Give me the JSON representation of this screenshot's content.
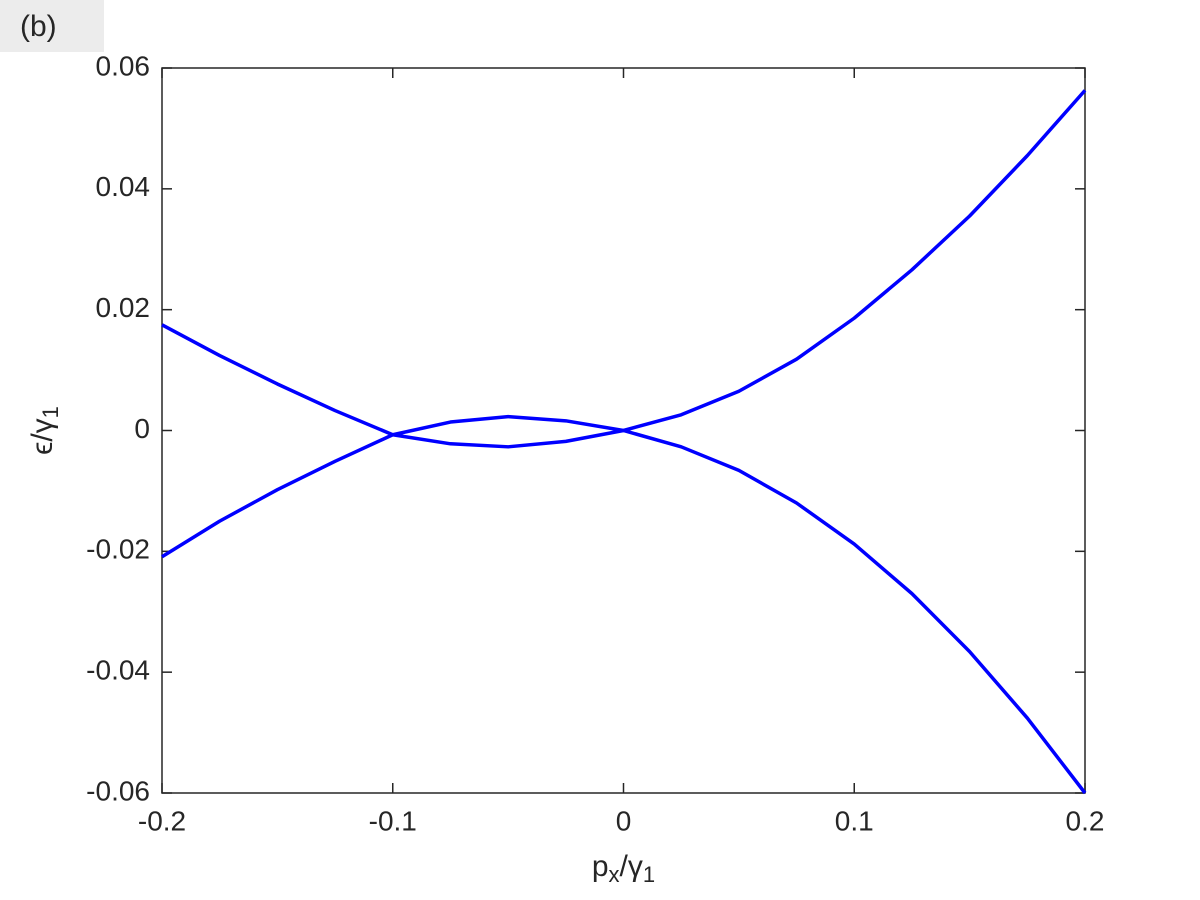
{
  "chart_data": {
    "type": "line",
    "panel_label": "(b)",
    "xlabel_parts": [
      "p",
      "x",
      "/γ",
      "1"
    ],
    "ylabel_parts": [
      "ϵ/γ",
      "1"
    ],
    "x": [
      -0.2,
      -0.175,
      -0.15,
      -0.125,
      -0.1,
      -0.075,
      -0.05,
      -0.025,
      0,
      0.025,
      0.05,
      0.075,
      0.1,
      0.125,
      0.15,
      0.175,
      0.2
    ],
    "series": [
      {
        "color": "#0000ff",
        "values": [
          0.0175,
          0.0124,
          0.0077,
          0.0033,
          -0.0007,
          -0.0022,
          -0.0027,
          -0.0018,
          0,
          0.0026,
          0.0065,
          0.0118,
          0.0186,
          0.0266,
          0.0355,
          0.0455,
          0.0563
        ]
      },
      {
        "color": "#0000ff",
        "values": [
          -0.0209,
          -0.015,
          -0.0098,
          -0.0051,
          -0.0007,
          0.0014,
          0.0023,
          0.0016,
          0,
          -0.0027,
          -0.0066,
          -0.012,
          -0.0188,
          -0.027,
          -0.0366,
          -0.0476,
          -0.06
        ]
      }
    ],
    "xlim": [
      -0.2,
      0.2
    ],
    "xticks": [
      -0.2,
      -0.1,
      0,
      0.1,
      0.2
    ],
    "ylim": [
      -0.06,
      0.06
    ],
    "yticks": [
      -0.06,
      -0.04,
      -0.02,
      0,
      0.02,
      0.04,
      0.06
    ],
    "grid": false
  }
}
